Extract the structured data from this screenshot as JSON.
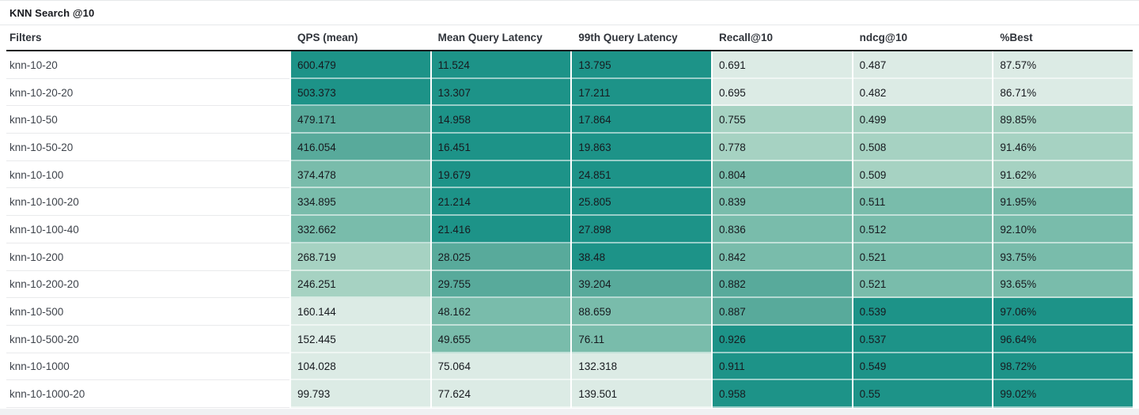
{
  "title": "KNN Search @10",
  "colors": {
    "heat_palette": [
      "#dcebe5",
      "#a6d2c2",
      "#79bcab",
      "#58aa9b",
      "#1d9388"
    ],
    "header_border": "#17191d",
    "divider": "#e6e8ea",
    "row_line": "#e9eaec",
    "footer_strip": "#f0f1f3",
    "title_text": "#17191e",
    "header_text": "#2f333a",
    "cell_text": "#171a1f"
  },
  "table": {
    "columns": [
      {
        "key": "filters",
        "label": "Filters",
        "heat": false
      },
      {
        "key": "qps",
        "label": "QPS (mean)",
        "heat": true,
        "higher_is_better": true
      },
      {
        "key": "mean_latency",
        "label": "Mean Query Latency",
        "heat": true,
        "higher_is_better": false
      },
      {
        "key": "p99_latency",
        "label": "99th Query Latency",
        "heat": true,
        "higher_is_better": false
      },
      {
        "key": "recall",
        "label": "Recall@10",
        "heat": true,
        "higher_is_better": true
      },
      {
        "key": "ndcg",
        "label": "ndcg@10",
        "heat": true,
        "higher_is_better": true
      },
      {
        "key": "pct_best",
        "label": "%Best",
        "heat": true,
        "higher_is_better": true
      }
    ],
    "rows": [
      {
        "filters": "knn-10-20",
        "qps": "600.479",
        "mean_latency": "11.524",
        "p99_latency": "13.795",
        "recall": "0.691",
        "ndcg": "0.487",
        "pct_best": "87.57%"
      },
      {
        "filters": "knn-10-20-20",
        "qps": "503.373",
        "mean_latency": "13.307",
        "p99_latency": "17.211",
        "recall": "0.695",
        "ndcg": "0.482",
        "pct_best": "86.71%"
      },
      {
        "filters": "knn-10-50",
        "qps": "479.171",
        "mean_latency": "14.958",
        "p99_latency": "17.864",
        "recall": "0.755",
        "ndcg": "0.499",
        "pct_best": "89.85%"
      },
      {
        "filters": "knn-10-50-20",
        "qps": "416.054",
        "mean_latency": "16.451",
        "p99_latency": "19.863",
        "recall": "0.778",
        "ndcg": "0.508",
        "pct_best": "91.46%"
      },
      {
        "filters": "knn-10-100",
        "qps": "374.478",
        "mean_latency": "19.679",
        "p99_latency": "24.851",
        "recall": "0.804",
        "ndcg": "0.509",
        "pct_best": "91.62%"
      },
      {
        "filters": "knn-10-100-20",
        "qps": "334.895",
        "mean_latency": "21.214",
        "p99_latency": "25.805",
        "recall": "0.839",
        "ndcg": "0.511",
        "pct_best": "91.95%"
      },
      {
        "filters": "knn-10-100-40",
        "qps": "332.662",
        "mean_latency": "21.416",
        "p99_latency": "27.898",
        "recall": "0.836",
        "ndcg": "0.512",
        "pct_best": "92.10%"
      },
      {
        "filters": "knn-10-200",
        "qps": "268.719",
        "mean_latency": "28.025",
        "p99_latency": "38.48",
        "recall": "0.842",
        "ndcg": "0.521",
        "pct_best": "93.75%"
      },
      {
        "filters": "knn-10-200-20",
        "qps": "246.251",
        "mean_latency": "29.755",
        "p99_latency": "39.204",
        "recall": "0.882",
        "ndcg": "0.521",
        "pct_best": "93.65%"
      },
      {
        "filters": "knn-10-500",
        "qps": "160.144",
        "mean_latency": "48.162",
        "p99_latency": "88.659",
        "recall": "0.887",
        "ndcg": "0.539",
        "pct_best": "97.06%"
      },
      {
        "filters": "knn-10-500-20",
        "qps": "152.445",
        "mean_latency": "49.655",
        "p99_latency": "76.11",
        "recall": "0.926",
        "ndcg": "0.537",
        "pct_best": "96.64%"
      },
      {
        "filters": "knn-10-1000",
        "qps": "104.028",
        "mean_latency": "75.064",
        "p99_latency": "132.318",
        "recall": "0.911",
        "ndcg": "0.549",
        "pct_best": "98.72%"
      },
      {
        "filters": "knn-10-1000-20",
        "qps": "99.793",
        "mean_latency": "77.624",
        "p99_latency": "139.501",
        "recall": "0.958",
        "ndcg": "0.55",
        "pct_best": "99.02%"
      }
    ]
  }
}
